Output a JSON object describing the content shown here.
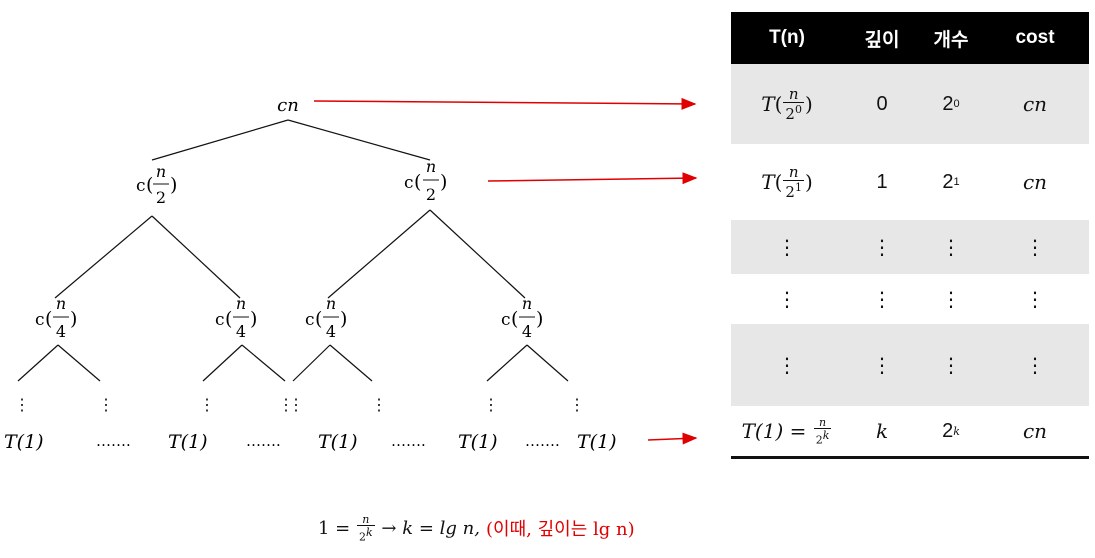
{
  "tree": {
    "root": "cn",
    "level1": {
      "prefix": "c",
      "num": "n",
      "den": "2"
    },
    "level2": {
      "prefix": "c",
      "num": "n",
      "den": "4"
    },
    "leaf": "T(1)",
    "dots": "……."
  },
  "table": {
    "headers": [
      "T(n)",
      "깊이",
      "개수",
      "cost"
    ],
    "rows": [
      {
        "t_prefix": "T",
        "t_num": "n",
        "t_den_base": "2",
        "t_den_exp": "0",
        "depth": "0",
        "count_base": "2",
        "count_exp": "0",
        "cost": "cn",
        "shade": true
      },
      {
        "t_prefix": "T",
        "t_num": "n",
        "t_den_base": "2",
        "t_den_exp": "1",
        "depth": "1",
        "count_base": "2",
        "count_exp": "1",
        "cost": "cn",
        "shade": false
      },
      {
        "vdots": "⋮",
        "shade": true
      },
      {
        "vdots": "⋮",
        "shade": false
      },
      {
        "vdots": "⋮",
        "shade": true
      }
    ],
    "last": {
      "t_left": "T(1)",
      "eq": "=",
      "num": "n",
      "den_base": "2",
      "den_exp": "k",
      "depth": "k",
      "count_base": "2",
      "count_exp": "k",
      "cost": "cn"
    }
  },
  "caption": {
    "lhs": "1 =",
    "num": "n",
    "den_base": "2",
    "den_exp": "k",
    "arrow": "→",
    "rhs": "k = lg n,",
    "note": "(이때, 깊이는 lg n)"
  },
  "colors": {
    "arrow": "#e00000",
    "header_bg": "#000000",
    "row_shade": "#e7e7e7"
  }
}
